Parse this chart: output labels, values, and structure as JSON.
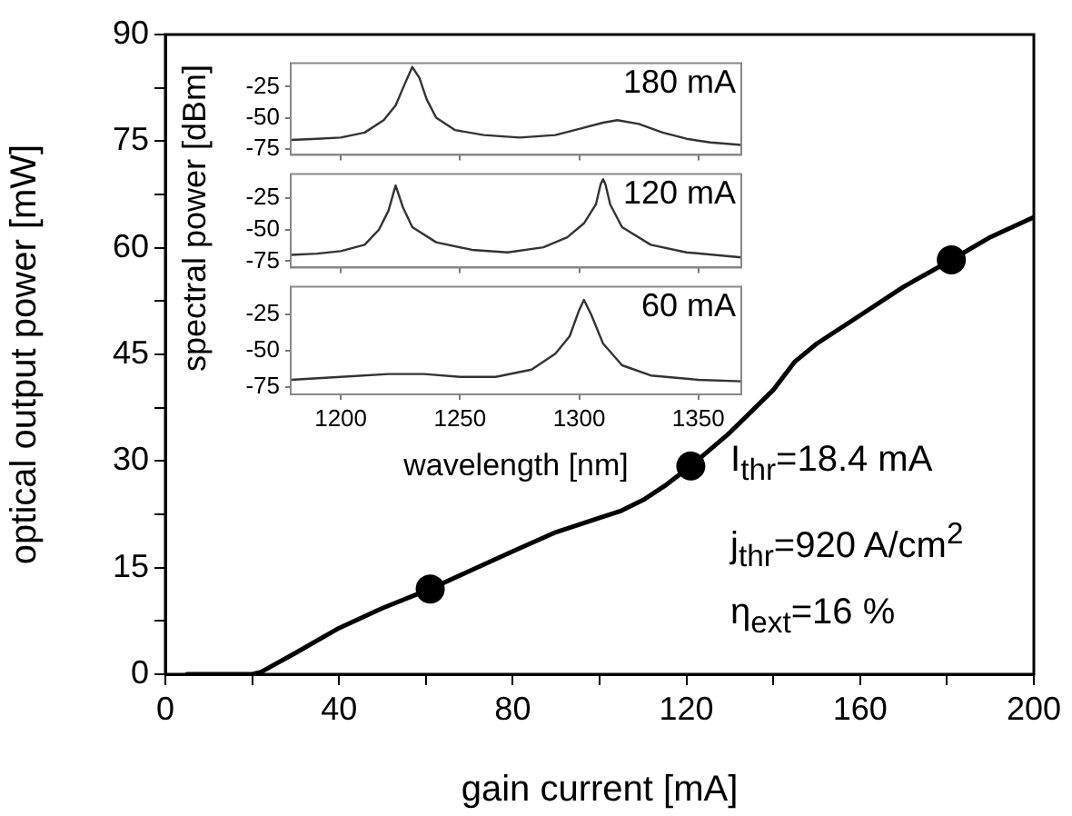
{
  "chart_data": [
    {
      "type": "line",
      "xlabel": "gain current [mA]",
      "ylabel": "optical output power [mW]",
      "xlim": [
        0,
        200
      ],
      "ylim": [
        0,
        90
      ],
      "xticks": [
        0,
        {
          "value": 20,
          "label": null
        },
        40,
        {
          "value": 60,
          "label": null
        },
        80,
        {
          "value": 100,
          "label": null
        },
        120,
        {
          "value": 140,
          "label": null
        },
        160,
        {
          "value": 180,
          "label": null
        },
        200
      ],
      "yticks": [
        0,
        {
          "value": 7.5,
          "label": null
        },
        15,
        {
          "value": 22.5,
          "label": null
        },
        30,
        {
          "value": 37.5,
          "label": null
        },
        45,
        {
          "value": 52.5,
          "label": null
        },
        60,
        {
          "value": 67.5,
          "label": null
        },
        75,
        {
          "value": 82.5,
          "label": null
        },
        90
      ],
      "annotations": [
        "I$_{thr}$=18.4 mA",
        "j$_{thr}$=920 A/cm$^{2}$",
        "η$_{ext}$=16 %"
      ],
      "series": [
        {
          "type": "line",
          "color": "#000000",
          "marker": "none",
          "x": [
            5,
            20,
            22,
            30,
            40,
            50,
            61,
            70,
            80,
            90,
            100,
            105,
            110,
            115,
            121,
            130,
            140,
            145,
            150,
            160,
            170,
            181,
            190,
            200
          ],
          "values": [
            0,
            0,
            0.3,
            3,
            6.5,
            9.3,
            12,
            14.5,
            17.3,
            20,
            22,
            23,
            24.5,
            26.5,
            29.3,
            34,
            40,
            44,
            46.5,
            50.5,
            54.5,
            58.3,
            61.5,
            64.3
          ]
        },
        {
          "type": "scatter",
          "color": "#000000",
          "marker": "circle",
          "x": [
            61,
            121,
            181
          ],
          "values": [
            12,
            29.3,
            58.3
          ]
        }
      ]
    },
    {
      "type": "line",
      "annotations": [
        "180 mA"
      ],
      "xlim": [
        1179,
        1368
      ],
      "ylim": [
        -80,
        -6
      ],
      "xticks": [
        1200,
        1250,
        1300,
        1350
      ],
      "yticks": [
        -75,
        -50,
        -25
      ],
      "tick_labels": "y",
      "series": [
        {
          "color": "#333333",
          "x": [
            1179,
            1190,
            1200,
            1210,
            1218,
            1223,
            1227,
            1230,
            1233,
            1236,
            1240,
            1248,
            1260,
            1275,
            1290,
            1300,
            1310,
            1316,
            1325,
            1335,
            1345,
            1355,
            1368
          ],
          "values": [
            -68,
            -67,
            -66,
            -62,
            -52,
            -40,
            -22,
            -9,
            -18,
            -35,
            -50,
            -60,
            -64,
            -66,
            -64,
            -59,
            -54,
            -52,
            -55,
            -62,
            -67,
            -70,
            -72
          ]
        }
      ]
    },
    {
      "type": "line",
      "annotations": [
        "120 mA"
      ],
      "ylabel": "spectral power [dBm]",
      "xlim": [
        1179,
        1368
      ],
      "ylim": [
        -80,
        -6
      ],
      "xticks": [
        1200,
        1250,
        1300,
        1350
      ],
      "yticks": [
        -75,
        -50,
        -25
      ],
      "tick_labels": "y",
      "series": [
        {
          "color": "#333333",
          "x": [
            1179,
            1190,
            1200,
            1210,
            1216,
            1220,
            1223,
            1226,
            1230,
            1240,
            1255,
            1270,
            1285,
            1295,
            1302,
            1307,
            1309,
            1310,
            1311,
            1313,
            1318,
            1330,
            1345,
            1368
          ],
          "values": [
            -70,
            -69,
            -67,
            -62,
            -50,
            -35,
            -15,
            -32,
            -48,
            -60,
            -66,
            -68,
            -64,
            -56,
            -45,
            -30,
            -14,
            -10,
            -14,
            -30,
            -48,
            -62,
            -68,
            -72
          ]
        }
      ]
    },
    {
      "type": "line",
      "annotations": [
        "60 mA"
      ],
      "xlabel": "wavelength [nm]",
      "xlim": [
        1179,
        1368
      ],
      "ylim": [
        -80,
        -6
      ],
      "xticks": [
        1200,
        1250,
        1300,
        1350
      ],
      "yticks": [
        -75,
        -50,
        -25
      ],
      "series": [
        {
          "color": "#333333",
          "x": [
            1179,
            1200,
            1220,
            1235,
            1250,
            1265,
            1280,
            1290,
            1296,
            1300,
            1302,
            1305,
            1310,
            1318,
            1330,
            1350,
            1368
          ],
          "values": [
            -70,
            -68,
            -66,
            -66,
            -68,
            -68,
            -63,
            -52,
            -40,
            -22,
            -15,
            -25,
            -45,
            -60,
            -67,
            -70,
            -71
          ]
        }
      ]
    }
  ]
}
